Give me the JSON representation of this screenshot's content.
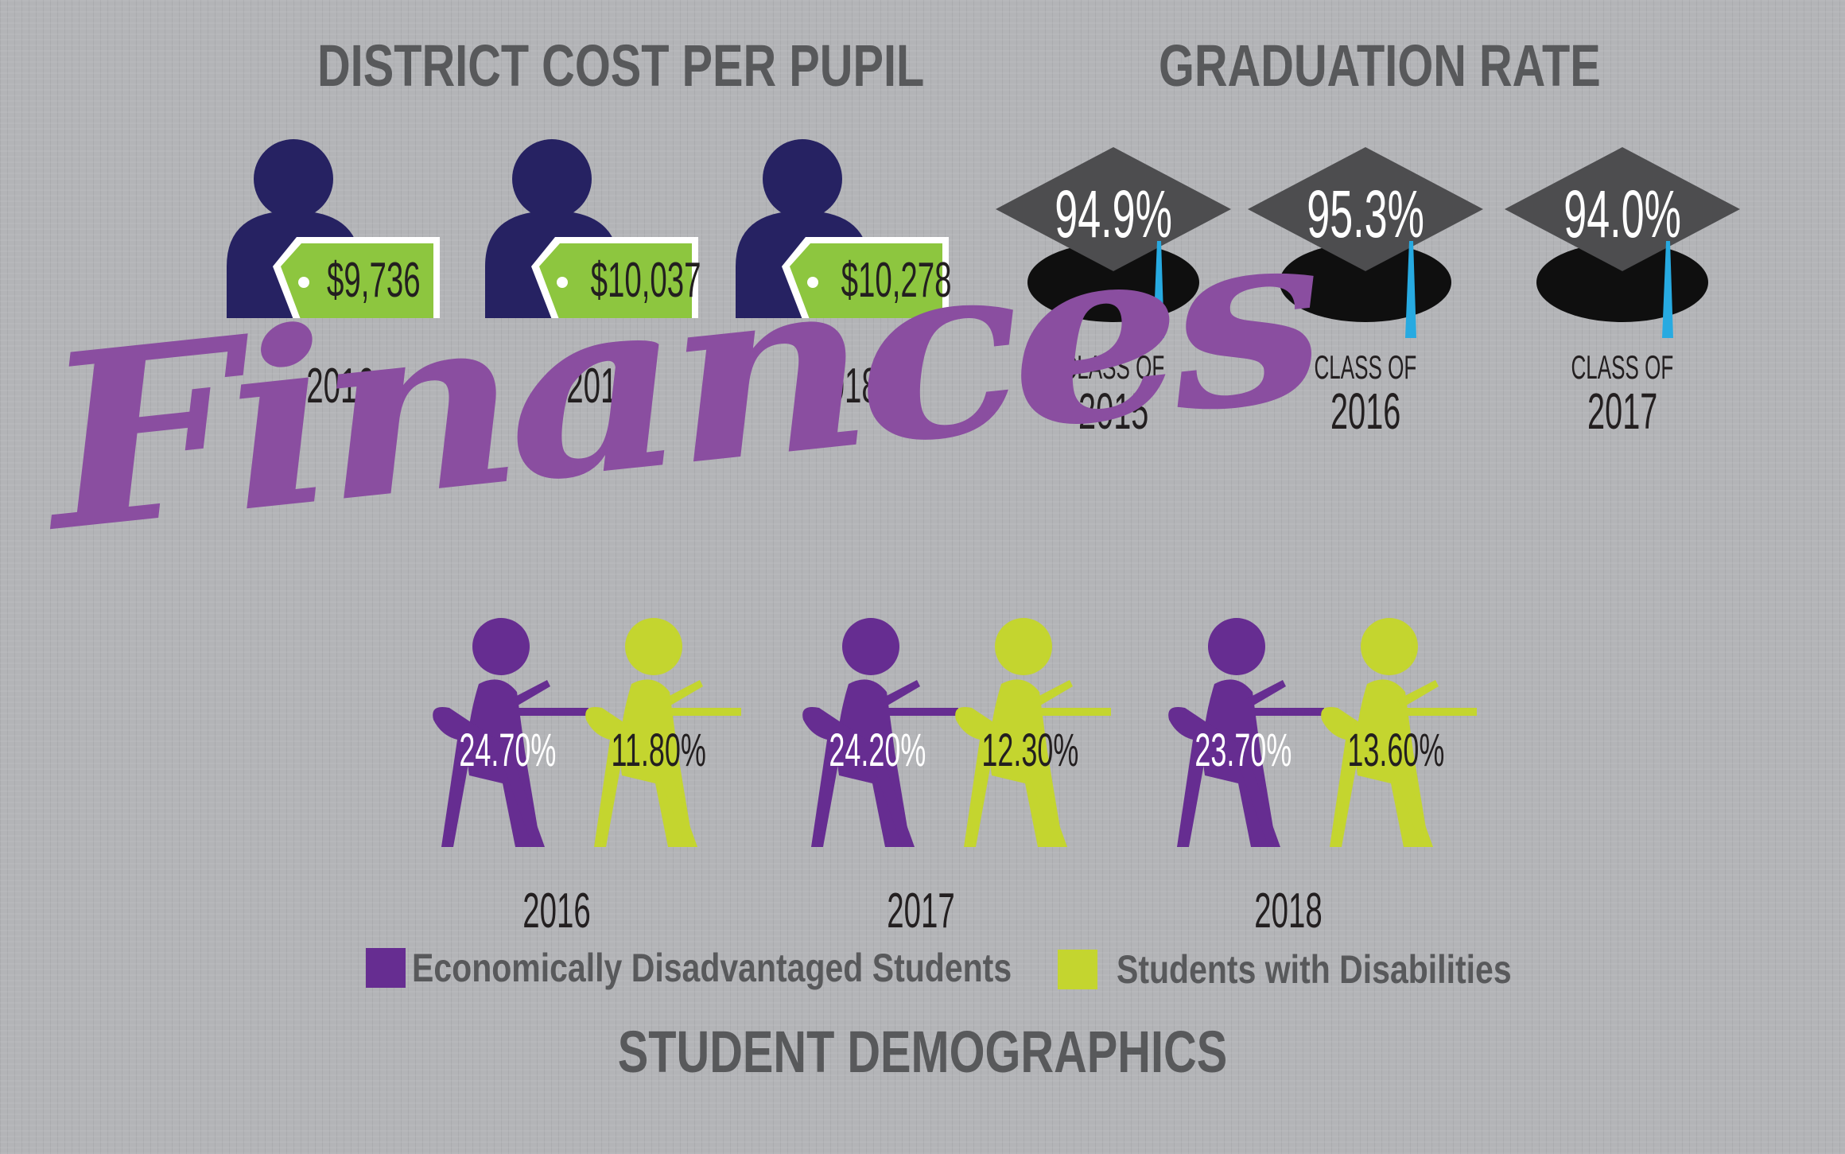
{
  "colors": {
    "background": "#b3b4b7",
    "heading_gray": "#58595b",
    "navy": "#262262",
    "tag_green": "#8dc63f",
    "cap_gray": "#4d4d4f",
    "tassel_blue": "#27aae1",
    "purple": "#662d91",
    "lime": "#c4d52f",
    "finances_purple": "#8a4ea0"
  },
  "cost_per_pupil": {
    "title": "DISTRICT COST PER PUPIL",
    "items": [
      {
        "year": "2016",
        "amount": "$9,736"
      },
      {
        "year": "2017",
        "amount": "$10,037"
      },
      {
        "year": "2018",
        "amount": "$10,278"
      }
    ]
  },
  "graduation_rate": {
    "title": "GRADUATION RATE",
    "items": [
      {
        "percent": "94.9%",
        "label": "CLASS OF",
        "year": "2015"
      },
      {
        "percent": "95.3%",
        "label": "CLASS OF",
        "year": "2016"
      },
      {
        "percent": "94.0%",
        "label": "CLASS OF",
        "year": "2017"
      }
    ]
  },
  "finances_word": "Finances",
  "demographics": {
    "title": "STUDENT DEMOGRAPHICS",
    "icons": {
      "person": "person-icon",
      "price_tag": "price-tag-icon",
      "cap": "graduation-cap-icon",
      "student": "student-at-desk-icon"
    },
    "years": [
      {
        "year": "2016",
        "econ": "24.70%",
        "disab": "11.80%"
      },
      {
        "year": "2017",
        "econ": "24.20%",
        "disab": "12.30%"
      },
      {
        "year": "2018",
        "econ": "23.70%",
        "disab": "13.60%"
      }
    ],
    "legend": {
      "econ": "Economically Disadvantaged Students",
      "disab": "Students with Disabilities"
    }
  }
}
